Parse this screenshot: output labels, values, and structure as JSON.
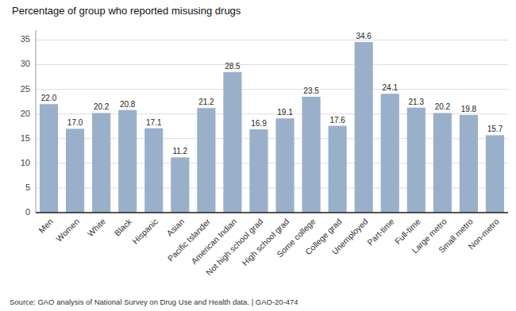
{
  "chart_data": {
    "type": "bar",
    "title": "Percentage of group who reported misusing drugs",
    "categories": [
      "Men",
      "Women",
      "White",
      "Black",
      "Hispanic",
      "Asian",
      "Pacific Islander",
      "American Indian",
      "Not high school grad",
      "High school grad",
      "Some college",
      "College grad",
      "Unemployed",
      "Part-time",
      "Full-time",
      "Large metro",
      "Small metro",
      "Non-metro"
    ],
    "values": [
      22.0,
      17.0,
      20.2,
      20.8,
      17.1,
      11.2,
      21.2,
      28.5,
      16.9,
      19.1,
      23.5,
      17.6,
      34.6,
      24.1,
      21.3,
      20.2,
      19.8,
      15.7
    ],
    "value_labels": [
      "22.0",
      "17.0",
      "20.2",
      "20.8",
      "17.1",
      "11.2",
      "21.2",
      "28.5",
      "16.9",
      "19.1",
      "23.5",
      "17.6",
      "34.6",
      "24.1",
      "21.3",
      "20.2",
      "19.8",
      "15.7"
    ],
    "color": "#9aafc9",
    "ylim": [
      0,
      37
    ],
    "yticks": [
      0,
      5,
      10,
      15,
      20,
      25,
      30,
      35
    ],
    "grid": true,
    "data_labels": true,
    "annotations": [
      "Source: GAO analysis of National Survey on Drug Use and Health data.  |  GAO-20-474"
    ]
  }
}
